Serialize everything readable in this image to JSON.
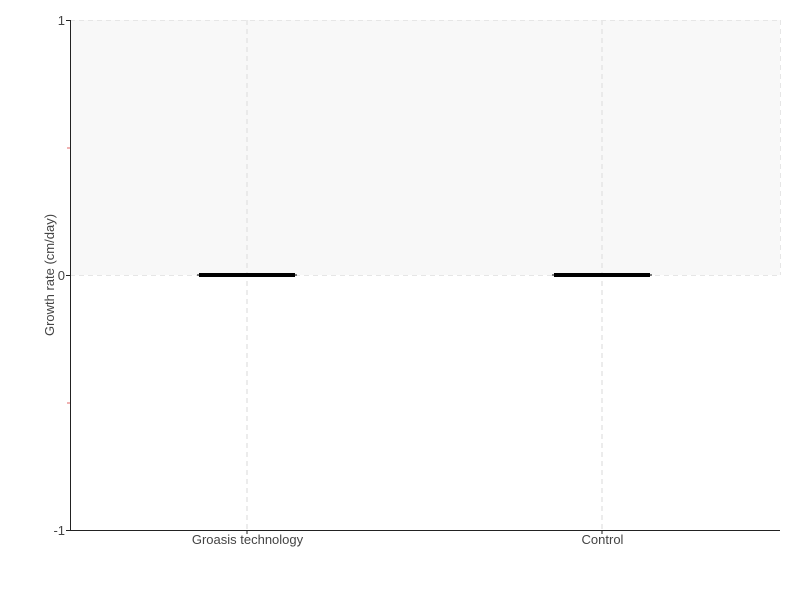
{
  "chart_data": {
    "type": "box",
    "title": "",
    "xlabel": "",
    "ylabel": "Growth rate (cm/day)",
    "ylim": [
      -1,
      1
    ],
    "yticks": [
      "1",
      "0",
      "-1"
    ],
    "categories": [
      "Groasis technology",
      "Control"
    ],
    "boxes": [
      {
        "category": "Groasis technology",
        "min": 0,
        "q1": 0,
        "median": 0,
        "q3": 0,
        "max": 0
      },
      {
        "category": "Control",
        "min": 0,
        "q1": 0,
        "median": 0,
        "q3": 0,
        "max": 0
      }
    ],
    "shaded_band": [
      0,
      1
    ],
    "grid": true,
    "colors": {
      "box": "#000000",
      "band": "#f8f8f8",
      "grid": "#e6e6e6",
      "minor_tick": "#e06666"
    }
  }
}
